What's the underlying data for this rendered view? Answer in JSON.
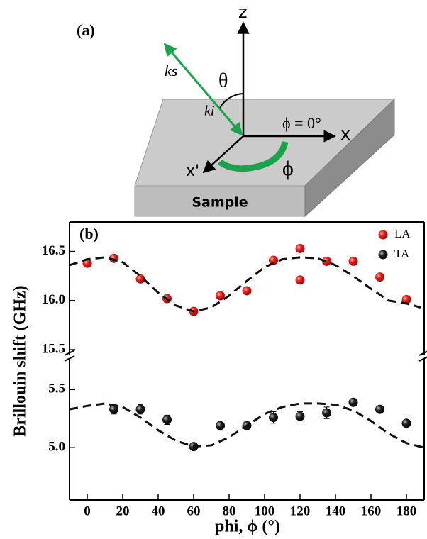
{
  "diagram": {
    "panel_label": "(a)",
    "z_label": "z",
    "x_label": "x",
    "x_prime_label": "x'",
    "ks_label": "ks",
    "ki_label": "ki",
    "theta_label": "θ",
    "phi_zero_label": "ϕ = 0°",
    "phi_label": "ϕ",
    "sample_label": "Sample"
  },
  "chart_data": {
    "type": "scatter",
    "panel_label": "(b)",
    "x_label": "phi, ϕ (°)",
    "y_label": "Brillouin shift (GHz)",
    "xlim": [
      -10,
      190
    ],
    "xticks": [
      0,
      20,
      40,
      60,
      80,
      100,
      120,
      140,
      160,
      180
    ],
    "y_segments": [
      {
        "ylim": [
          4.55,
          5.77
        ],
        "yticks": [
          {
            "value": 5,
            "label": "5.0"
          },
          5.5
        ]
      },
      {
        "ylim": [
          15.45,
          16.8
        ],
        "yticks": [
          15.5,
          {
            "value": 16,
            "label": "16.0"
          },
          16.5
        ]
      }
    ],
    "legend": "upper right",
    "series": [
      {
        "name": "LA",
        "color": "#e8201c",
        "segment": 1,
        "x": [
          0,
          15,
          30,
          45,
          60,
          75,
          90,
          105,
          120,
          120,
          135,
          150,
          165,
          180
        ],
        "values": [
          16.38,
          16.43,
          16.22,
          16.02,
          15.89,
          16.05,
          16.1,
          16.41,
          16.53,
          16.21,
          16.4,
          16.4,
          16.24,
          16.01
        ]
      },
      {
        "name": "TA",
        "color": "#111111",
        "segment": 0,
        "x": [
          15,
          30,
          45,
          60,
          75,
          90,
          105,
          120,
          135,
          150,
          165,
          180
        ],
        "values": [
          5.33,
          5.33,
          5.24,
          5.01,
          5.19,
          5.19,
          5.26,
          5.27,
          5.3,
          5.39,
          5.33,
          5.21
        ],
        "errors": [
          0.04,
          0.04,
          0.04,
          0.02,
          0.04,
          0.03,
          0.05,
          0.04,
          0.05,
          0.03,
          0.03,
          0.03
        ]
      },
      {
        "style": "dashed",
        "color": "#111111",
        "segment": 1,
        "x": [
          -10,
          0,
          10,
          20,
          30,
          40,
          50,
          60,
          70,
          80,
          90,
          100,
          110,
          120,
          130,
          140,
          150,
          160,
          170,
          180,
          188
        ],
        "values": [
          16.36,
          16.42,
          16.44,
          16.39,
          16.25,
          16.08,
          15.95,
          15.89,
          15.93,
          16.05,
          16.2,
          16.34,
          16.42,
          16.44,
          16.43,
          16.36,
          16.25,
          16.12,
          16.0,
          15.97,
          15.93
        ]
      },
      {
        "style": "dashed",
        "color": "#111111",
        "segment": 0,
        "x": [
          -10,
          0,
          10,
          20,
          30,
          40,
          50,
          60,
          70,
          80,
          90,
          100,
          110,
          120,
          130,
          140,
          150,
          160,
          170,
          180,
          190
        ],
        "values": [
          5.33,
          5.36,
          5.38,
          5.35,
          5.26,
          5.15,
          5.06,
          5.01,
          5.02,
          5.09,
          5.19,
          5.29,
          5.35,
          5.38,
          5.38,
          5.37,
          5.32,
          5.23,
          5.12,
          5.04,
          5.0
        ]
      }
    ]
  }
}
